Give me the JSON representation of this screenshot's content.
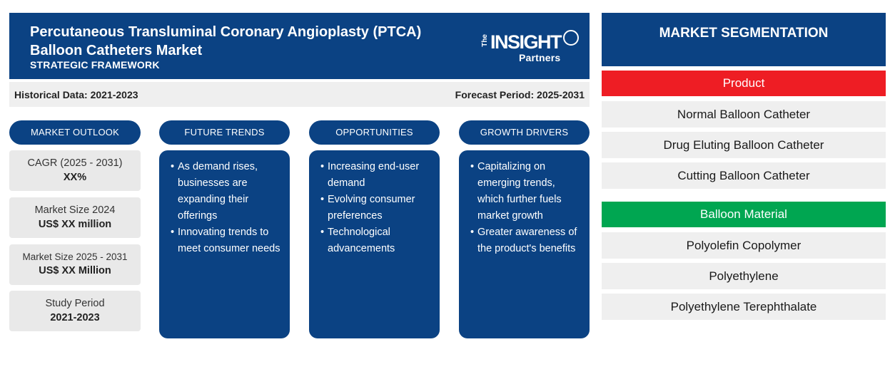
{
  "header": {
    "title": "Percutaneous Transluminal Coronary Angioplasty (PTCA) Balloon Catheters Market",
    "subtitle": "STRATEGIC FRAMEWORK",
    "logo": {
      "the": "The",
      "main": "INSIGHT",
      "partners": "Partners"
    }
  },
  "periods": {
    "historical": "Historical Data: 2021-2023",
    "forecast": "Forecast Period: 2025-2031"
  },
  "pills": {
    "market_outlook": "MARKET OUTLOOK",
    "future_trends": "FUTURE TRENDS",
    "opportunities": "OPPORTUNITIES",
    "growth_drivers": "GROWTH DRIVERS"
  },
  "stats": [
    {
      "label": "CAGR (2025 - 2031)",
      "value": "XX%"
    },
    {
      "label": "Market Size 2024",
      "value": "US$ XX million"
    },
    {
      "label": "Market Size 2025 - 2031",
      "value": "US$ XX Million"
    },
    {
      "label": "Study Period",
      "value": "2021-2023"
    }
  ],
  "future_trends": [
    "As demand rises, businesses are expanding their offerings",
    "Innovating trends to meet consumer needs"
  ],
  "opportunities": [
    "Increasing end-user demand",
    "Evolving consumer preferences",
    "Technological advancements"
  ],
  "growth_drivers": [
    "Capitalizing on emerging trends, which further fuels market growth",
    "Greater awareness of the product's benefits"
  ],
  "segmentation": {
    "title": "MARKET SEGMENTATION",
    "product": {
      "label": "Product",
      "color": "#ee1d24",
      "items": [
        "Normal Balloon Catheter",
        "Drug Eluting Balloon Catheter",
        "Cutting Balloon Catheter"
      ]
    },
    "balloon_material": {
      "label": "Balloon Material",
      "color": "#00a651",
      "items": [
        "Polyolefin Copolymer",
        "Polyethylene",
        "Polyethylene Terephthalate"
      ]
    }
  },
  "colors": {
    "primary": "#0b4283",
    "panel_bg": "#efefef"
  }
}
